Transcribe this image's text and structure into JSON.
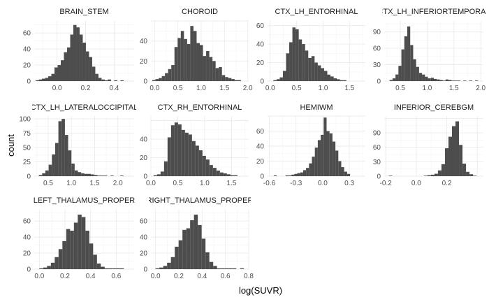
{
  "chart_data": {
    "type": "bar",
    "title": "",
    "xlabel": "log(SUVR)",
    "ylabel": "count",
    "grid": true,
    "bar_color": "#4d4d4d",
    "panels": [
      {
        "name": "BRAIN_STEM",
        "bin_start": -0.15,
        "bin_width": 0.022,
        "counts": [
          1,
          2,
          3,
          4,
          6,
          9,
          17,
          20,
          26,
          36,
          42,
          58,
          70,
          67,
          58,
          48,
          37,
          30,
          18,
          9,
          4,
          2,
          1,
          2,
          0,
          1,
          0,
          1
        ],
        "xlim": [
          -0.16,
          0.54
        ],
        "ylim": [
          0,
          75
        ],
        "xticks": [
          0.0,
          0.2,
          0.4
        ],
        "xtick_labels": [
          "0.0",
          "0.2",
          "0.4"
        ],
        "yticks": [
          0,
          20,
          40,
          60
        ],
        "ytick_labels": [
          "0",
          "20",
          "40",
          "60"
        ]
      },
      {
        "name": "CHOROID",
        "bin_start": -0.05,
        "bin_width": 0.068,
        "counts": [
          1,
          2,
          3,
          5,
          8,
          12,
          16,
          34,
          43,
          50,
          42,
          37,
          55,
          50,
          38,
          36,
          25,
          30,
          24,
          20,
          13,
          14,
          6,
          4,
          3,
          2,
          1,
          1
        ],
        "xlim": [
          -0.08,
          2.02
        ],
        "ylim": [
          0,
          60
        ],
        "xticks": [
          0.0,
          0.5,
          1.0,
          1.5,
          2.0
        ],
        "xtick_labels": [
          "0.0",
          "0.5",
          "1.0",
          "1.5",
          "2.0"
        ],
        "yticks": [
          0,
          20,
          40
        ],
        "ytick_labels": [
          "0",
          "20",
          "40"
        ]
      },
      {
        "name": "CTX_LH_ENTORHINAL",
        "bin_start": 0.0,
        "bin_width": 0.06,
        "counts": [
          0,
          1,
          2,
          4,
          11,
          30,
          42,
          58,
          56,
          45,
          40,
          33,
          25,
          27,
          20,
          17,
          14,
          11,
          7,
          5,
          3,
          2,
          1,
          1
        ],
        "xlim": [
          -0.05,
          1.8
        ],
        "ylim": [
          0,
          65
        ],
        "xticks": [
          0.0,
          0.5,
          1.0,
          1.5
        ],
        "xtick_labels": [
          "0.0",
          "0.5",
          "1.0",
          "1.5"
        ],
        "yticks": [
          0,
          20,
          40,
          60
        ],
        "ytick_labels": [
          "0",
          "20",
          "40",
          "60"
        ]
      },
      {
        "name": "CTX_LH_INFERIORTEMPORAL",
        "bin_start": 0.3,
        "bin_width": 0.055,
        "counts": [
          2,
          5,
          12,
          28,
          58,
          82,
          100,
          66,
          40,
          26,
          15,
          12,
          8,
          5,
          6,
          4,
          3,
          2,
          1,
          3,
          2,
          1,
          1,
          1,
          0,
          1,
          0,
          1,
          0,
          1
        ],
        "xlim": [
          0.2,
          2.05
        ],
        "ylim": [
          0,
          110
        ],
        "xticks": [
          0.5,
          1.0,
          1.5,
          2.0
        ],
        "xtick_labels": [
          "0.5",
          "1.0",
          "1.5",
          "2.0"
        ],
        "yticks": [
          0,
          30,
          60,
          90
        ],
        "ytick_labels": [
          "0",
          "30",
          "60",
          "90"
        ]
      },
      {
        "name": "CTX_LH_LATERALOCCIPITAL",
        "bin_start": 0.3,
        "bin_width": 0.07,
        "counts": [
          2,
          5,
          10,
          20,
          38,
          58,
          96,
          100,
          72,
          45,
          22,
          10,
          7,
          5,
          4,
          4,
          3,
          2,
          1,
          1,
          1,
          0,
          1,
          0,
          0,
          1
        ],
        "xlim": [
          0.2,
          2.35
        ],
        "ylim": [
          0,
          105
        ],
        "xticks": [
          0.5,
          1.0,
          1.5,
          2.0
        ],
        "xtick_labels": [
          "0.5",
          "1.0",
          "1.5",
          "2.0"
        ],
        "yticks": [
          0,
          25,
          50,
          75,
          100
        ],
        "ytick_labels": [
          "0",
          "25",
          "50",
          "75",
          "100"
        ]
      },
      {
        "name": "CTX_RH_ENTORHINAL",
        "bin_start": 0.05,
        "bin_width": 0.065,
        "counts": [
          1,
          2,
          5,
          16,
          42,
          55,
          58,
          56,
          50,
          47,
          45,
          38,
          33,
          28,
          22,
          18,
          12,
          9,
          6,
          4,
          3,
          2,
          1,
          1
        ],
        "xlim": [
          0.0,
          1.82
        ],
        "ylim": [
          0,
          65
        ],
        "xticks": [
          0.0,
          0.5,
          1.0,
          1.5
        ],
        "xtick_labels": [
          "0.0",
          "0.5",
          "1.0",
          "1.5"
        ],
        "yticks": [
          0,
          20,
          40
        ],
        "ytick_labels": [
          "0",
          "20",
          "40"
        ]
      },
      {
        "name": "HEMIWM",
        "bin_start": -0.55,
        "bin_width": 0.033,
        "counts": [
          1,
          0,
          0,
          0,
          1,
          1,
          2,
          3,
          4,
          5,
          8,
          11,
          17,
          26,
          38,
          48,
          55,
          78,
          60,
          57,
          46,
          34,
          20,
          12,
          6,
          3
        ],
        "xlim": [
          -0.62,
          0.48
        ],
        "ylim": [
          0,
          80
        ],
        "xticks": [
          -0.6,
          -0.3,
          0.0,
          0.3
        ],
        "xtick_labels": [
          "-0.6",
          "-0.3",
          "0.0",
          "0.3"
        ],
        "yticks": [
          0,
          20,
          40,
          60
        ],
        "ytick_labels": [
          "0",
          "20",
          "40",
          "60"
        ]
      },
      {
        "name": "INFERIOR_CEREBGM",
        "bin_start": -0.18,
        "bin_width": 0.023,
        "counts": [
          1,
          0,
          0,
          0,
          0,
          0,
          0,
          0,
          0,
          0,
          1,
          2,
          3,
          5,
          12,
          25,
          58,
          82,
          104,
          114,
          65,
          26,
          9,
          4,
          1
        ],
        "xlim": [
          -0.21,
          0.44
        ],
        "ylim": [
          0,
          125
        ],
        "xticks": [
          -0.2,
          0.0,
          0.2
        ],
        "xtick_labels": [
          "-0.2",
          "0.0",
          "0.2"
        ],
        "yticks": [
          0,
          30,
          60,
          90
        ],
        "ytick_labels": [
          "0",
          "30",
          "60",
          "90"
        ]
      },
      {
        "name": "LEFT_THALAMUS_PROPER",
        "bin_start": 0.0,
        "bin_width": 0.03,
        "counts": [
          1,
          2,
          4,
          8,
          15,
          25,
          35,
          50,
          48,
          58,
          68,
          65,
          48,
          32,
          18,
          7,
          3,
          1,
          1,
          1,
          1,
          1
        ],
        "xlim": [
          -0.04,
          0.74
        ],
        "ylim": [
          0,
          75
        ],
        "xticks": [
          0.0,
          0.2,
          0.4,
          0.6
        ],
        "xtick_labels": [
          "0.0",
          "0.2",
          "0.4",
          "0.6"
        ],
        "yticks": [
          0,
          20,
          40,
          60
        ],
        "ytick_labels": [
          "0",
          "20",
          "40",
          "60"
        ]
      },
      {
        "name": "RIGHT_THALAMUS_PROPER",
        "bin_start": 0.0,
        "bin_width": 0.033,
        "counts": [
          1,
          2,
          4,
          8,
          15,
          28,
          36,
          49,
          51,
          61,
          68,
          55,
          38,
          21,
          9,
          4,
          1,
          1,
          1,
          1,
          1,
          0,
          1
        ],
        "xlim": [
          -0.04,
          0.8
        ],
        "ylim": [
          0,
          75
        ],
        "xticks": [
          0.0,
          0.2,
          0.4,
          0.6,
          0.8
        ],
        "xtick_labels": [
          "0.0",
          "0.2",
          "0.4",
          "0.6",
          "0.8"
        ],
        "yticks": [
          0,
          20,
          40,
          60
        ],
        "ytick_labels": [
          "0",
          "20",
          "40",
          "60"
        ]
      }
    ]
  }
}
